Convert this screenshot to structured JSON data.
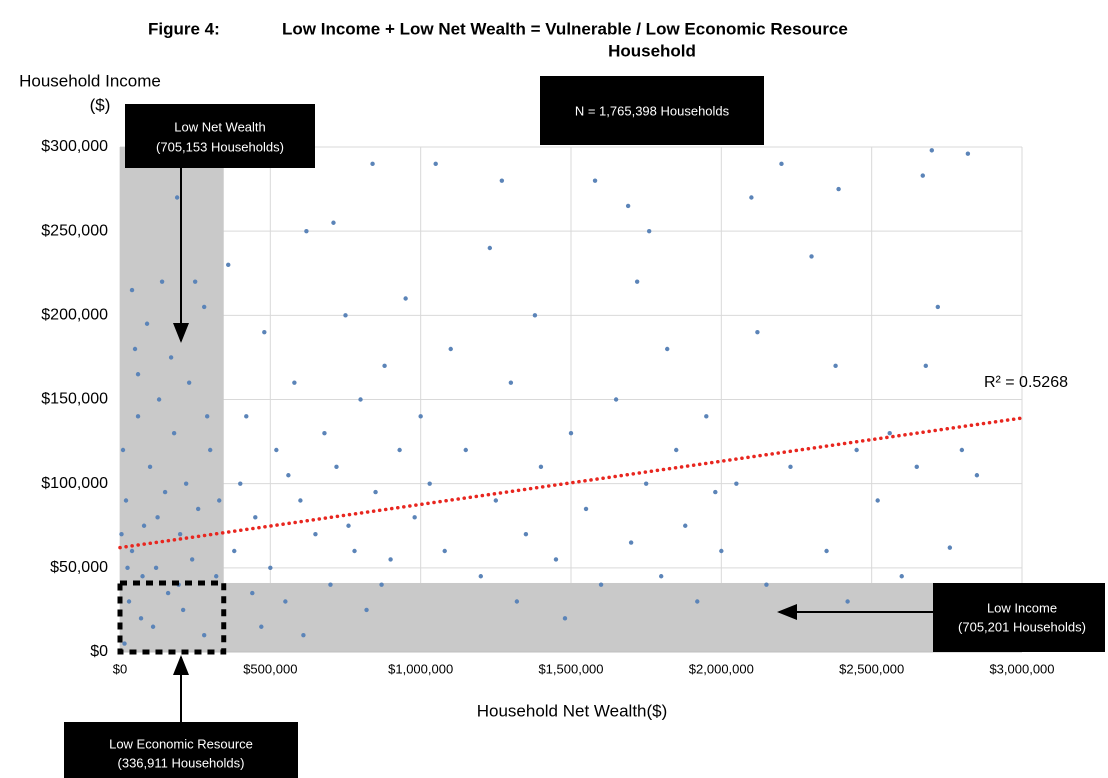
{
  "chart_data": {
    "type": "scatter",
    "title": [
      "Figure 4:",
      "Low Income + Low Net Wealth = Vulnerable / Low Economic Resource",
      "Household"
    ],
    "ylabel": [
      "Household Income",
      "($)"
    ],
    "xlabel": "Household Net Wealth($)",
    "color": "#5b84b8",
    "grid": true,
    "xlim": [
      0,
      3000000
    ],
    "ylim": [
      0,
      300000
    ],
    "xticks": [
      {
        "value": 0,
        "label": "$0"
      },
      {
        "value": 500000,
        "label": "$500,000"
      },
      {
        "value": 1000000,
        "label": "$1,000,000"
      },
      {
        "value": 1500000,
        "label": "$1,500,000"
      },
      {
        "value": 2000000,
        "label": "$2,000,000"
      },
      {
        "value": 2500000,
        "label": "$2,500,000"
      },
      {
        "value": 3000000,
        "label": "$3,000,000"
      }
    ],
    "yticks": [
      {
        "value": 0,
        "label": "$0"
      },
      {
        "value": 50000,
        "label": "$50,000"
      },
      {
        "value": 100000,
        "label": "$100,000"
      },
      {
        "value": 150000,
        "label": "$150,000"
      },
      {
        "value": 200000,
        "label": "$200,000"
      },
      {
        "value": 250000,
        "label": "$250,000"
      },
      {
        "value": 300000,
        "label": "$300,000"
      }
    ],
    "regions": [
      {
        "xlim": [
          0,
          345000
        ],
        "ylim": [
          0,
          300000
        ],
        "color": "#c9c9c9"
      },
      {
        "xlim": [
          0,
          3000000
        ],
        "ylim": [
          0,
          41000
        ],
        "color": "#c9c9c9"
      }
    ],
    "dotted_box": {
      "xlim": [
        0,
        345000
      ],
      "ylim": [
        0,
        41000
      ]
    },
    "trendline": {
      "x": [
        0,
        3000000
      ],
      "y": [
        62000,
        139000
      ],
      "color": "#e8261f",
      "label": "R² = 0.5268"
    },
    "annotations": {
      "total": "N = 1,765,398 Households",
      "low_net_wealth": [
        "Low Net Wealth",
        "(705,153 Households)"
      ],
      "low_income": [
        "Low Income",
        "(705,201 Households)"
      ],
      "low_economic_resource": [
        "Low Economic Resource",
        "(336,911 Households)"
      ]
    },
    "x": [
      20000,
      40000,
      10000,
      60000,
      80000,
      100000,
      120000,
      150000,
      180000,
      200000,
      230000,
      260000,
      300000,
      320000,
      30000,
      70000,
      110000,
      160000,
      210000,
      280000,
      15000,
      50000,
      90000,
      140000,
      170000,
      250000,
      280000,
      40000,
      190000,
      60000,
      130000,
      220000,
      330000,
      25000,
      75000,
      5000,
      125000,
      240000,
      290000,
      195000,
      380000,
      400000,
      420000,
      450000,
      480000,
      500000,
      520000,
      550000,
      580000,
      600000,
      620000,
      650000,
      680000,
      700000,
      720000,
      750000,
      780000,
      800000,
      820000,
      850000,
      880000,
      900000,
      930000,
      950000,
      980000,
      1000000,
      360000,
      440000,
      560000,
      710000,
      840000,
      470000,
      610000,
      760000,
      870000,
      1030000,
      1050000,
      1080000,
      1100000,
      1150000,
      1200000,
      1230000,
      1250000,
      1300000,
      1320000,
      1350000,
      1400000,
      1450000,
      1500000,
      1550000,
      1580000,
      1600000,
      1650000,
      1700000,
      1720000,
      1750000,
      1800000,
      1820000,
      1850000,
      1880000,
      1920000,
      1950000,
      1980000,
      1270000,
      1380000,
      1480000,
      1690000,
      1760000,
      2000000,
      2050000,
      2100000,
      2120000,
      2150000,
      2200000,
      2230000,
      2300000,
      2350000,
      2380000,
      2420000,
      2450000,
      2520000,
      2560000,
      2600000,
      2650000,
      2680000,
      2700000,
      2720000,
      2760000,
      2800000,
      2820000,
      2850000,
      2670000,
      2390000
    ],
    "y": [
      90000,
      60000,
      120000,
      140000,
      75000,
      110000,
      50000,
      95000,
      130000,
      70000,
      160000,
      85000,
      120000,
      45000,
      30000,
      20000,
      15000,
      35000,
      25000,
      10000,
      5000,
      180000,
      195000,
      220000,
      175000,
      220000,
      205000,
      215000,
      270000,
      165000,
      150000,
      100000,
      90000,
      50000,
      45000,
      70000,
      80000,
      55000,
      140000,
      40000,
      60000,
      100000,
      140000,
      80000,
      190000,
      50000,
      120000,
      30000,
      160000,
      90000,
      250000,
      70000,
      130000,
      40000,
      110000,
      200000,
      60000,
      150000,
      25000,
      95000,
      170000,
      55000,
      120000,
      210000,
      80000,
      140000,
      230000,
      35000,
      105000,
      255000,
      290000,
      15000,
      10000,
      75000,
      40000,
      100000,
      290000,
      60000,
      180000,
      120000,
      45000,
      240000,
      90000,
      160000,
      30000,
      70000,
      110000,
      55000,
      130000,
      85000,
      280000,
      40000,
      150000,
      65000,
      220000,
      100000,
      45000,
      180000,
      120000,
      75000,
      30000,
      140000,
      95000,
      280000,
      200000,
      20000,
      265000,
      250000,
      60000,
      100000,
      270000,
      190000,
      40000,
      290000,
      110000,
      235000,
      60000,
      170000,
      30000,
      120000,
      90000,
      130000,
      45000,
      110000,
      170000,
      298000,
      205000,
      62000,
      120000,
      296000,
      105000,
      283000,
      275000
    ]
  }
}
